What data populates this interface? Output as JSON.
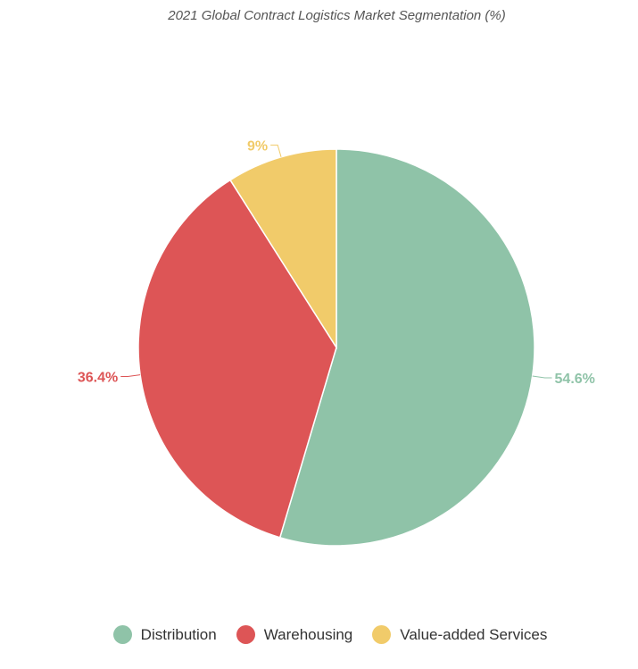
{
  "chart_data": {
    "type": "pie",
    "title": "2021 Global Contract Logistics Market Segmentation (%)",
    "categories": [
      "Distribution",
      "Warehousing",
      "Value-added Services"
    ],
    "values": [
      54.6,
      36.4,
      9
    ],
    "labels": [
      "54.6%",
      "36.4%",
      "9%"
    ],
    "colors": [
      "#8fc3a8",
      "#dd5556",
      "#f1cb6a"
    ],
    "legend_position": "bottom"
  }
}
